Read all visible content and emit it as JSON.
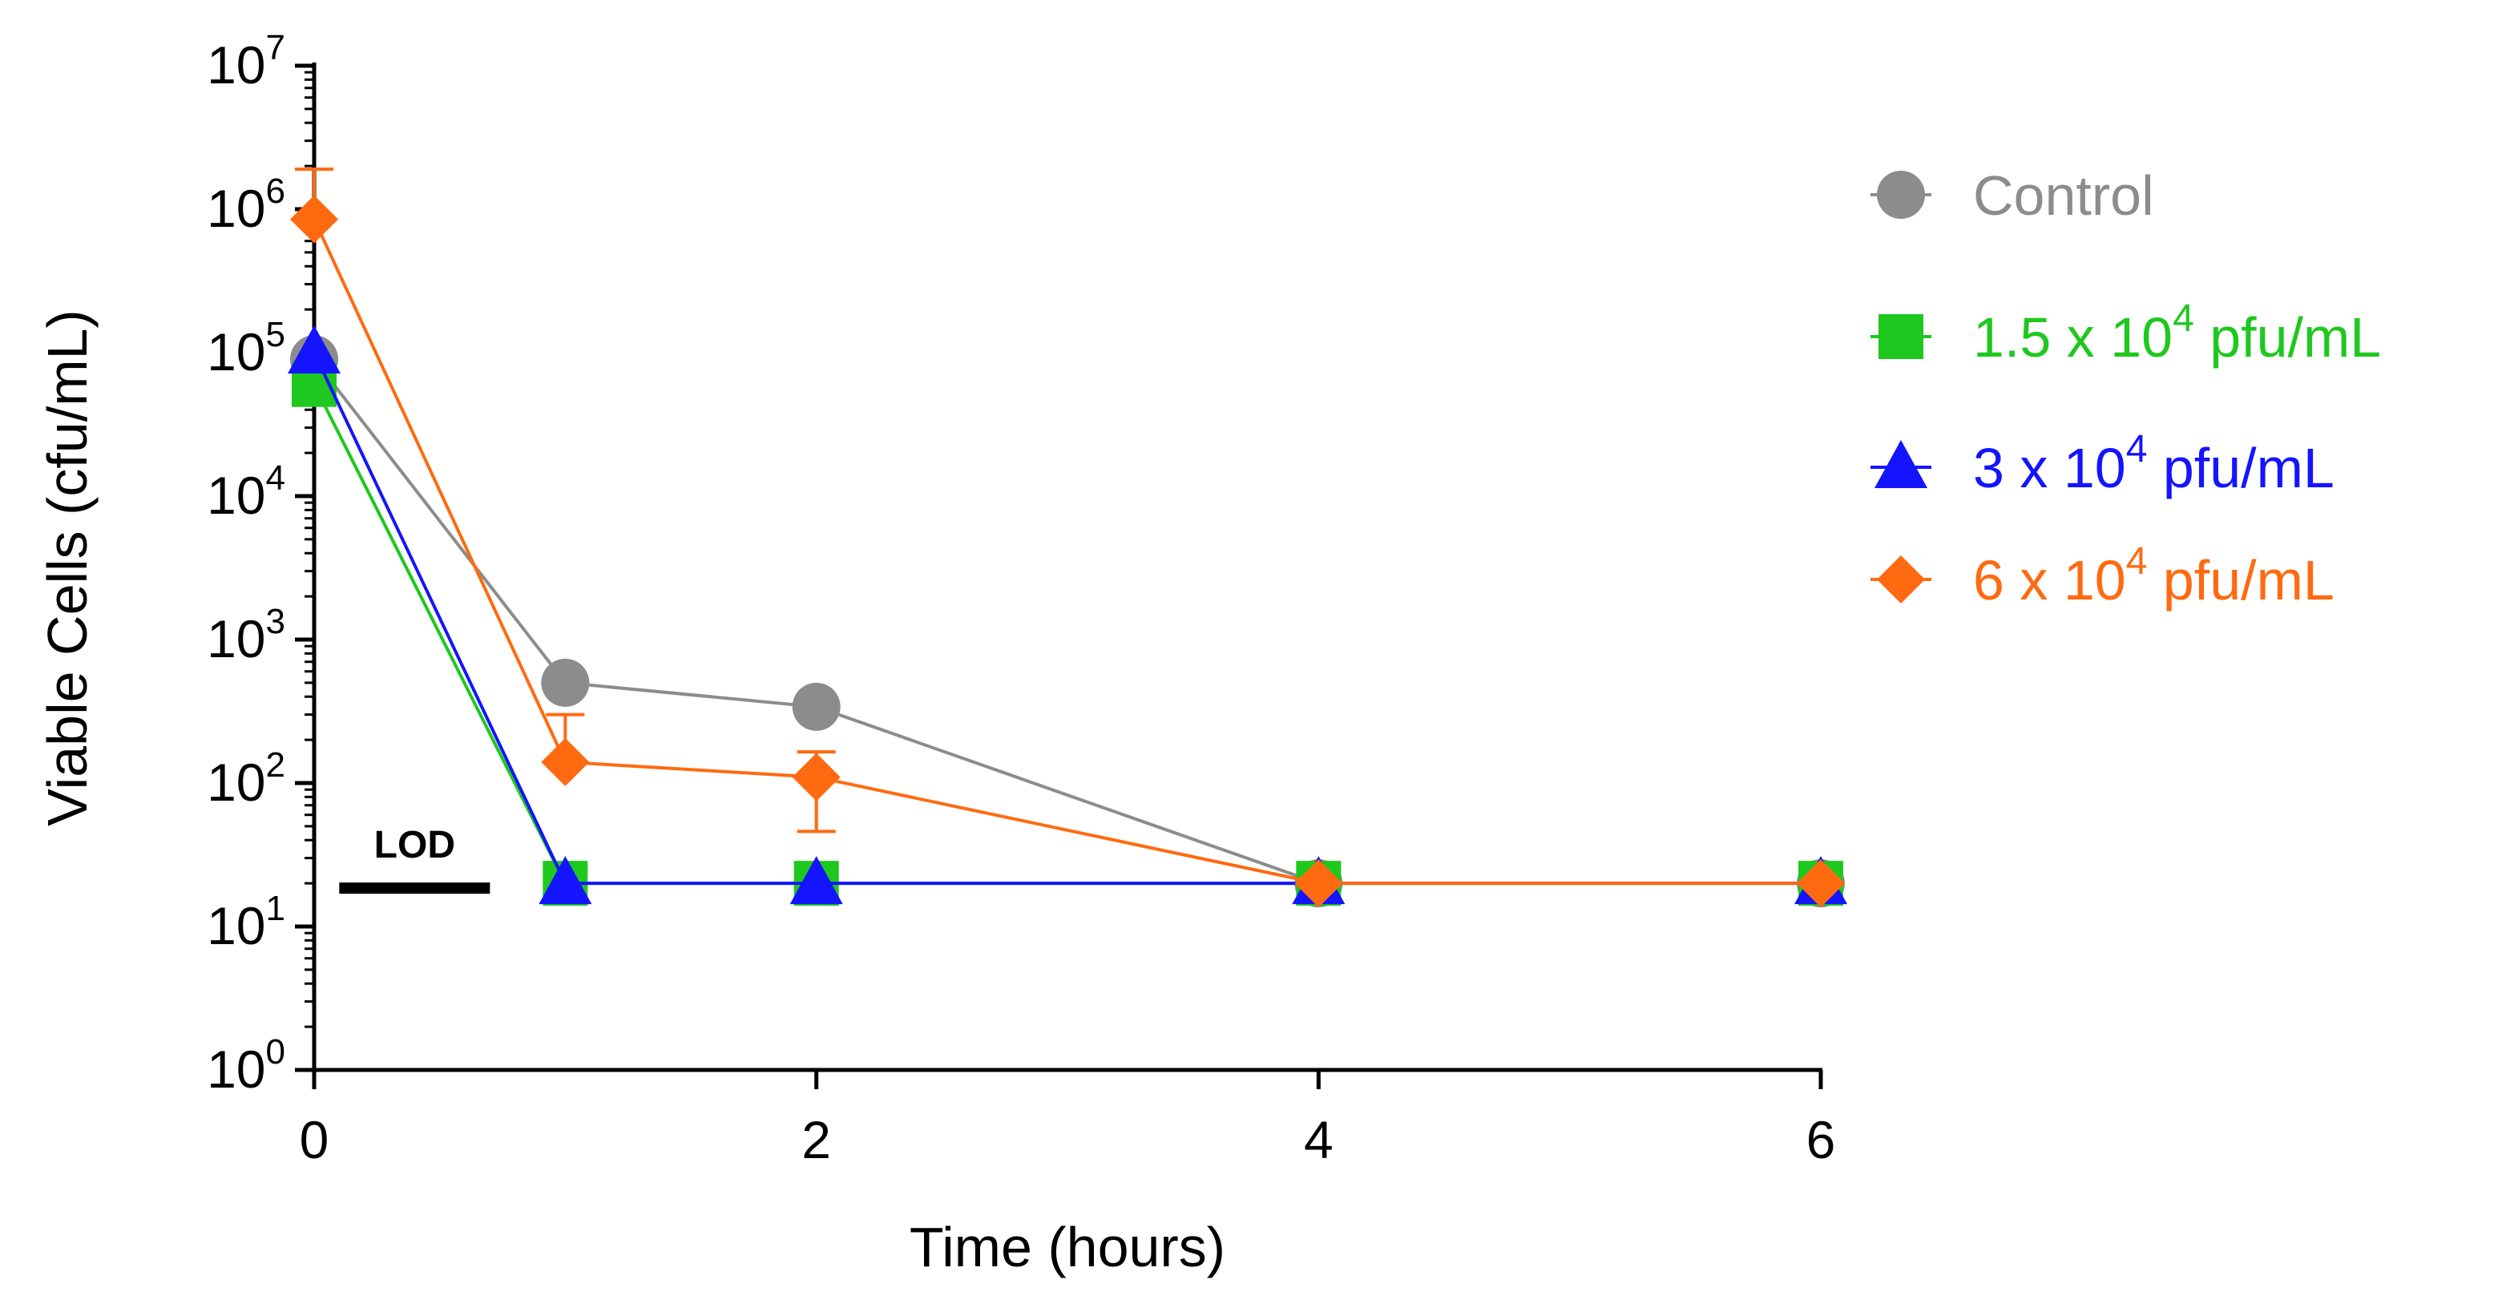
{
  "chart_data": {
    "type": "line",
    "xlabel": "Time (hours)",
    "ylabel": "Viable Cells (cfu/mL)",
    "yscale": "log10",
    "xlim": [
      0,
      6
    ],
    "ylim": [
      1,
      10000000
    ],
    "x_ticks": [
      "0",
      "2",
      "4",
      "6"
    ],
    "x_tick_values": [
      0,
      2,
      4,
      6
    ],
    "y_tick_base": "10",
    "y_tick_exponents": [
      "0",
      "1",
      "2",
      "3",
      "4",
      "5",
      "6",
      "7"
    ],
    "y_tick_values": [
      1,
      10,
      100,
      1000,
      10000,
      100000,
      1000000,
      10000000
    ],
    "legend_position": "right",
    "lod": {
      "label": "LOD",
      "value": 20,
      "x_range": [
        0.1,
        0.7
      ],
      "color": "#000000"
    },
    "series": [
      {
        "name": "Control",
        "legend_parts": [
          "Control"
        ],
        "marker": "circle",
        "color": "#8c8c8c",
        "x": [
          0,
          1,
          2,
          4,
          6
        ],
        "values": [
          90000,
          500,
          340,
          20,
          20
        ]
      },
      {
        "name": "1.5 x 10^4 pfu/mL",
        "legend_parts": [
          "1.5 x 10",
          "4",
          " pfu/mL"
        ],
        "marker": "square",
        "color": "#1ec81e",
        "x": [
          0,
          1,
          2,
          4,
          6
        ],
        "values": [
          60000,
          20,
          20,
          20,
          20
        ]
      },
      {
        "name": "3 x 10^4 pfu/mL",
        "legend_parts": [
          "3 x 10",
          "4",
          " pfu/mL"
        ],
        "marker": "triangle",
        "color": "#1414ff",
        "x": [
          0,
          1,
          2,
          4,
          6
        ],
        "values": [
          100000,
          20,
          20,
          20,
          20
        ]
      },
      {
        "name": "6 x 10^4 pfu/mL",
        "legend_parts": [
          "6 x 10",
          "4",
          " pfu/mL"
        ],
        "marker": "diamond",
        "color": "#ff6a10",
        "x": [
          0,
          1,
          2,
          4,
          6
        ],
        "values": [
          850000,
          140,
          110,
          20,
          20
        ],
        "error_upper": [
          1900000,
          300,
          165,
          null,
          null
        ],
        "error_lower": [
          null,
          null,
          46,
          null,
          null
        ]
      }
    ]
  }
}
